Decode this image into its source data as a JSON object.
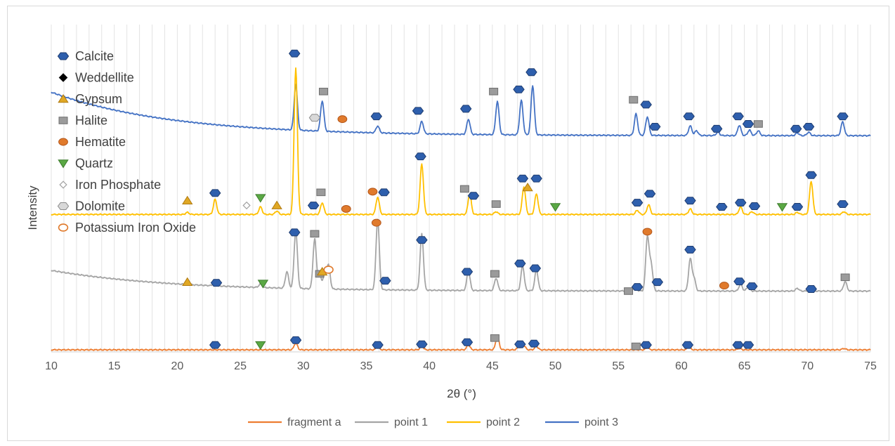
{
  "chart_data": {
    "type": "line",
    "title": "",
    "xlabel": "2θ (°)",
    "ylabel": "Intensity",
    "xlim": [
      10,
      75
    ],
    "x_ticks": [
      10,
      15,
      20,
      25,
      30,
      35,
      40,
      45,
      50,
      55,
      60,
      65,
      70,
      75
    ],
    "grid": "vertical minor gridlines every 1 degree",
    "y_axis_values_shown": false,
    "legend_position": "bottom",
    "series": [
      {
        "name": "fragment a",
        "color": "#ed7d31",
        "baseline": 3,
        "background": "flat",
        "peaks": [
          [
            29.4,
            10
          ],
          [
            35.9,
            4
          ],
          [
            39.4,
            5
          ],
          [
            43.1,
            7
          ],
          [
            45.4,
            20
          ],
          [
            47.1,
            4
          ],
          [
            47.5,
            6
          ],
          [
            48.5,
            5
          ],
          [
            57.3,
            3
          ],
          [
            60.6,
            4
          ],
          [
            64.6,
            2
          ],
          [
            72.9,
            2
          ]
        ]
      },
      {
        "name": "point 1",
        "color": "#a5a5a5",
        "baseline": 88,
        "background": "decaying",
        "background_start": 118,
        "peaks": [
          [
            23.0,
            8
          ],
          [
            26.6,
            5
          ],
          [
            28.7,
            24
          ],
          [
            29.4,
            84
          ],
          [
            30.9,
            72
          ],
          [
            31.3,
            20
          ],
          [
            31.7,
            22
          ],
          [
            32.0,
            34
          ],
          [
            35.9,
            102
          ],
          [
            39.4,
            82
          ],
          [
            43.1,
            28
          ],
          [
            45.3,
            18
          ],
          [
            47.4,
            36
          ],
          [
            48.5,
            30
          ],
          [
            56.3,
            6
          ],
          [
            57.3,
            78
          ],
          [
            57.6,
            38
          ],
          [
            60.7,
            46
          ],
          [
            61.0,
            18
          ],
          [
            64.7,
            10
          ],
          [
            65.3,
            6
          ],
          [
            69.2,
            4
          ],
          [
            70.3,
            6
          ],
          [
            73.0,
            14
          ]
        ]
      },
      {
        "name": "point 2",
        "color": "#ffc000",
        "baseline": 199,
        "background": "flat",
        "peaks": [
          [
            20.8,
            3
          ],
          [
            23.0,
            22
          ],
          [
            26.6,
            11
          ],
          [
            27.9,
            5
          ],
          [
            29.4,
            212
          ],
          [
            31.5,
            17
          ],
          [
            35.9,
            25
          ],
          [
            39.4,
            73
          ],
          [
            43.2,
            30
          ],
          [
            45.3,
            4
          ],
          [
            47.5,
            40
          ],
          [
            48.5,
            30
          ],
          [
            56.5,
            6
          ],
          [
            57.4,
            14
          ],
          [
            60.7,
            8
          ],
          [
            64.7,
            11
          ],
          [
            65.6,
            4
          ],
          [
            69.2,
            3
          ],
          [
            70.3,
            48
          ],
          [
            72.9,
            4
          ]
        ]
      },
      {
        "name": "point 3",
        "color": "#4472c4",
        "baseline": 313,
        "background": "decaying",
        "background_start": 376,
        "peaks": [
          [
            29.4,
            66
          ],
          [
            31.5,
            44
          ],
          [
            35.9,
            10
          ],
          [
            39.4,
            18
          ],
          [
            43.1,
            22
          ],
          [
            45.4,
            48
          ],
          [
            47.3,
            50
          ],
          [
            48.2,
            72
          ],
          [
            56.4,
            31
          ],
          [
            57.3,
            27
          ],
          [
            60.7,
            14
          ],
          [
            61.2,
            7
          ],
          [
            62.9,
            5
          ],
          [
            64.6,
            15
          ],
          [
            65.4,
            8
          ],
          [
            66.1,
            7
          ],
          [
            69.2,
            4
          ],
          [
            70.1,
            5
          ],
          [
            72.8,
            20
          ]
        ]
      }
    ],
    "phase_legend": [
      {
        "label": "Calcite",
        "marker": "hexagon",
        "color": "#2e5fad",
        "edge": "#1f3d70"
      },
      {
        "label": "Weddellite",
        "marker": "diamond",
        "color": "#000000",
        "edge": "#000000"
      },
      {
        "label": "Gypsum",
        "marker": "triangle-up",
        "color": "#e0a825",
        "edge": "#b07a10"
      },
      {
        "label": "Halite",
        "marker": "square",
        "color": "#9b9b9b",
        "edge": "#6f6f6f"
      },
      {
        "label": "Hematite",
        "marker": "ellipse",
        "color": "#e07a2c",
        "edge": "#b3561a"
      },
      {
        "label": "Quartz",
        "marker": "triangle-down",
        "color": "#5aa844",
        "edge": "#3f7d2e"
      },
      {
        "label": "Iron Phosphate",
        "marker": "diamond",
        "color": "#ffffff",
        "edge": "#a0a0a0"
      },
      {
        "label": "Dolomite",
        "marker": "hexagon",
        "color": "#d8d8d8",
        "edge": "#8c8c8c"
      },
      {
        "label": "Potassium Iron Oxide",
        "marker": "ellipse",
        "color": "#ffffff",
        "edge": "#e07a2c"
      }
    ],
    "phase_markers": [
      {
        "x": 23.0,
        "y": 10,
        "marker": "hexagon"
      },
      {
        "x": 26.6,
        "y": 10,
        "marker": "triangle-down"
      },
      {
        "x": 29.4,
        "y": 17,
        "marker": "hexagon"
      },
      {
        "x": 35.9,
        "y": 10,
        "marker": "hexagon"
      },
      {
        "x": 39.4,
        "y": 11,
        "marker": "hexagon"
      },
      {
        "x": 43.0,
        "y": 14,
        "marker": "hexagon"
      },
      {
        "x": 45.2,
        "y": 20,
        "marker": "square"
      },
      {
        "x": 47.2,
        "y": 11,
        "marker": "hexagon"
      },
      {
        "x": 48.3,
        "y": 12,
        "marker": "hexagon"
      },
      {
        "x": 56.4,
        "y": 8,
        "marker": "square"
      },
      {
        "x": 57.2,
        "y": 10,
        "marker": "hexagon"
      },
      {
        "x": 60.5,
        "y": 10,
        "marker": "hexagon"
      },
      {
        "x": 64.5,
        "y": 10,
        "marker": "hexagon"
      },
      {
        "x": 65.3,
        "y": 10,
        "marker": "hexagon"
      },
      {
        "x": 20.8,
        "y": 101,
        "marker": "triangle-up"
      },
      {
        "x": 23.1,
        "y": 100,
        "marker": "hexagon"
      },
      {
        "x": 26.8,
        "y": 99,
        "marker": "triangle-down"
      },
      {
        "x": 29.3,
        "y": 173,
        "marker": "hexagon"
      },
      {
        "x": 30.9,
        "y": 171,
        "marker": "square"
      },
      {
        "x": 31.3,
        "y": 113,
        "marker": "square"
      },
      {
        "x": 31.5,
        "y": 116,
        "marker": "triangle-up"
      },
      {
        "x": 32.0,
        "y": 119,
        "marker": "ellipse-open"
      },
      {
        "x": 35.8,
        "y": 187,
        "marker": "ellipse"
      },
      {
        "x": 36.5,
        "y": 103,
        "marker": "hexagon"
      },
      {
        "x": 39.4,
        "y": 162,
        "marker": "hexagon"
      },
      {
        "x": 43.0,
        "y": 116,
        "marker": "hexagon"
      },
      {
        "x": 45.2,
        "y": 113,
        "marker": "square"
      },
      {
        "x": 47.2,
        "y": 128,
        "marker": "hexagon"
      },
      {
        "x": 48.4,
        "y": 121,
        "marker": "hexagon"
      },
      {
        "x": 55.8,
        "y": 88,
        "marker": "square"
      },
      {
        "x": 56.5,
        "y": 94,
        "marker": "hexagon"
      },
      {
        "x": 57.3,
        "y": 174,
        "marker": "ellipse"
      },
      {
        "x": 58.1,
        "y": 101,
        "marker": "hexagon"
      },
      {
        "x": 60.7,
        "y": 148,
        "marker": "hexagon"
      },
      {
        "x": 63.4,
        "y": 96,
        "marker": "ellipse"
      },
      {
        "x": 64.6,
        "y": 102,
        "marker": "hexagon"
      },
      {
        "x": 65.6,
        "y": 95,
        "marker": "hexagon"
      },
      {
        "x": 70.3,
        "y": 91,
        "marker": "hexagon"
      },
      {
        "x": 73.0,
        "y": 108,
        "marker": "square"
      },
      {
        "x": 20.8,
        "y": 219,
        "marker": "triangle-up"
      },
      {
        "x": 23.0,
        "y": 230,
        "marker": "hexagon"
      },
      {
        "x": 25.5,
        "y": 212,
        "marker": "diamond-open"
      },
      {
        "x": 26.6,
        "y": 223,
        "marker": "triangle-down"
      },
      {
        "x": 27.9,
        "y": 212,
        "marker": "triangle-up"
      },
      {
        "x": 30.8,
        "y": 212,
        "marker": "hexagon"
      },
      {
        "x": 31.4,
        "y": 231,
        "marker": "square"
      },
      {
        "x": 33.4,
        "y": 207,
        "marker": "ellipse"
      },
      {
        "x": 35.5,
        "y": 232,
        "marker": "ellipse"
      },
      {
        "x": 36.4,
        "y": 231,
        "marker": "hexagon"
      },
      {
        "x": 39.3,
        "y": 283,
        "marker": "hexagon"
      },
      {
        "x": 42.8,
        "y": 236,
        "marker": "square"
      },
      {
        "x": 43.5,
        "y": 226,
        "marker": "hexagon"
      },
      {
        "x": 45.3,
        "y": 214,
        "marker": "square"
      },
      {
        "x": 47.4,
        "y": 251,
        "marker": "hexagon"
      },
      {
        "x": 47.8,
        "y": 238,
        "marker": "triangle-up"
      },
      {
        "x": 48.5,
        "y": 251,
        "marker": "hexagon"
      },
      {
        "x": 50.0,
        "y": 210,
        "marker": "triangle-down"
      },
      {
        "x": 56.5,
        "y": 216,
        "marker": "hexagon"
      },
      {
        "x": 57.5,
        "y": 229,
        "marker": "hexagon"
      },
      {
        "x": 60.7,
        "y": 219,
        "marker": "hexagon"
      },
      {
        "x": 63.2,
        "y": 210,
        "marker": "hexagon"
      },
      {
        "x": 64.7,
        "y": 216,
        "marker": "hexagon"
      },
      {
        "x": 65.8,
        "y": 211,
        "marker": "hexagon"
      },
      {
        "x": 68.0,
        "y": 210,
        "marker": "triangle-down"
      },
      {
        "x": 69.2,
        "y": 210,
        "marker": "hexagon"
      },
      {
        "x": 70.3,
        "y": 256,
        "marker": "hexagon"
      },
      {
        "x": 72.8,
        "y": 214,
        "marker": "hexagon"
      },
      {
        "x": 29.3,
        "y": 432,
        "marker": "hexagon"
      },
      {
        "x": 31.6,
        "y": 377,
        "marker": "square"
      },
      {
        "x": 30.9,
        "y": 339,
        "marker": "dolomite"
      },
      {
        "x": 33.1,
        "y": 337,
        "marker": "ellipse"
      },
      {
        "x": 35.8,
        "y": 341,
        "marker": "hexagon"
      },
      {
        "x": 39.1,
        "y": 349,
        "marker": "hexagon"
      },
      {
        "x": 42.9,
        "y": 352,
        "marker": "hexagon"
      },
      {
        "x": 45.1,
        "y": 377,
        "marker": "square"
      },
      {
        "x": 47.1,
        "y": 380,
        "marker": "hexagon"
      },
      {
        "x": 48.1,
        "y": 405,
        "marker": "hexagon"
      },
      {
        "x": 56.2,
        "y": 365,
        "marker": "square"
      },
      {
        "x": 57.2,
        "y": 358,
        "marker": "hexagon"
      },
      {
        "x": 57.9,
        "y": 326,
        "marker": "hexagon"
      },
      {
        "x": 60.6,
        "y": 341,
        "marker": "hexagon"
      },
      {
        "x": 62.8,
        "y": 323,
        "marker": "hexagon"
      },
      {
        "x": 64.5,
        "y": 341,
        "marker": "hexagon"
      },
      {
        "x": 65.3,
        "y": 330,
        "marker": "hexagon"
      },
      {
        "x": 66.1,
        "y": 330,
        "marker": "square"
      },
      {
        "x": 69.1,
        "y": 323,
        "marker": "hexagon"
      },
      {
        "x": 70.1,
        "y": 326,
        "marker": "hexagon"
      },
      {
        "x": 72.8,
        "y": 341,
        "marker": "hexagon"
      }
    ]
  }
}
